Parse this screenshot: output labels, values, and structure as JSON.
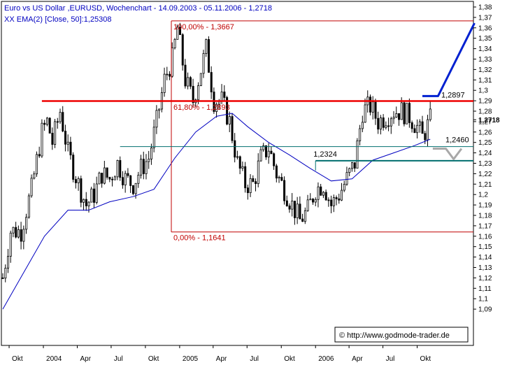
{
  "header": {
    "title": "Euro vs US Dollar ,EURUSD, Wochenchart - 14.09.2003 - 05.11.2006 - 1,2718",
    "ema_label": "XX EMA(2) [Close, 50]:1,25308"
  },
  "copyright": "© http://www.godmode-trader.de",
  "colors": {
    "background": "#ffffff",
    "price_bars": "#000000",
    "ema_line": "#0000c0",
    "fib_lines": "#c00000",
    "resistance": "#ee0000",
    "support_teal": "#006e6e",
    "projection_up": "#0020d0",
    "projection_down": "#a8a8a8",
    "title_text": "#0000c0",
    "fib_text": "#c00000"
  },
  "chart_data": {
    "type": "candlestick",
    "x_tick_labels": [
      "Okt",
      "2004",
      "Apr",
      "Jul",
      "Okt",
      "2005",
      "Apr",
      "Jul",
      "Okt",
      "2006",
      "Apr",
      "Jul",
      "Okt"
    ],
    "y_tick_labels": [
      "1,38",
      "1,37",
      "1,36",
      "1,35",
      "1,34",
      "1,33",
      "1,32",
      "1,31",
      "1,3",
      "1,29",
      "1,28",
      "1,27",
      "1,26",
      "1,25",
      "1,24",
      "1,23",
      "1,22",
      "1,21",
      "1,2",
      "1,19",
      "1,18",
      "1,17",
      "1,16",
      "1,15",
      "1,14",
      "1,13",
      "1,12",
      "1,11",
      "1,1",
      "1,09"
    ],
    "ylim": [
      1.08,
      1.385
    ],
    "x_range": [
      "2003-09-14",
      "2006-11-05"
    ],
    "last_close": 1.2718,
    "ema_value": 1.25308,
    "fib_levels": [
      {
        "label": "100,00% - 1,3667",
        "value": 1.3667
      },
      {
        "label": "61,80% - 1,2893",
        "value": 1.2893
      },
      {
        "label": "0,00% - 1,1641",
        "value": 1.1641
      }
    ],
    "horizontal_levels": [
      {
        "label": "1,2897",
        "value": 1.2897,
        "start": "2003-12-28"
      },
      {
        "label": "1,2460",
        "value": 1.246,
        "start": "2004-07-25"
      },
      {
        "label": "1,2324",
        "value": 1.2324,
        "start": "2006-01-01"
      }
    ],
    "projection_up": [
      {
        "date": "2006-10-15",
        "value": 1.2945
      },
      {
        "date": "2006-11-26",
        "value": 1.2945
      },
      {
        "date": "2007-03-04",
        "value": 1.3645
      }
    ],
    "projection_down": [
      {
        "date": "2006-11-12",
        "value": 1.244
      },
      {
        "date": "2006-12-17",
        "value": 1.244
      },
      {
        "date": "2007-01-07",
        "value": 1.234
      },
      {
        "date": "2007-01-28",
        "value": 1.244
      }
    ],
    "close_path": [
      [
        "2003-09-14",
        1.12
      ],
      [
        "2003-10-05",
        1.165
      ],
      [
        "2003-11-02",
        1.165
      ],
      [
        "2003-11-30",
        1.205
      ],
      [
        "2003-12-28",
        1.26
      ],
      [
        "2004-01-11",
        1.27
      ],
      [
        "2004-01-25",
        1.25
      ],
      [
        "2004-02-15",
        1.28
      ],
      [
        "2004-03-07",
        1.24
      ],
      [
        "2004-04-04",
        1.21
      ],
      [
        "2004-04-25",
        1.19
      ],
      [
        "2004-05-16",
        1.2
      ],
      [
        "2004-06-06",
        1.22
      ],
      [
        "2004-06-27",
        1.215
      ],
      [
        "2004-07-18",
        1.23
      ],
      [
        "2004-08-08",
        1.215
      ],
      [
        "2004-08-29",
        1.21
      ],
      [
        "2004-09-19",
        1.225
      ],
      [
        "2004-10-10",
        1.235
      ],
      [
        "2004-10-31",
        1.27
      ],
      [
        "2004-11-21",
        1.31
      ],
      [
        "2004-12-12",
        1.33
      ],
      [
        "2004-12-26",
        1.36
      ],
      [
        "2005-01-16",
        1.31
      ],
      [
        "2005-02-06",
        1.29
      ],
      [
        "2005-02-27",
        1.32
      ],
      [
        "2005-03-13",
        1.34
      ],
      [
        "2005-04-03",
        1.29
      ],
      [
        "2005-04-24",
        1.29
      ],
      [
        "2005-05-15",
        1.27
      ],
      [
        "2005-06-05",
        1.23
      ],
      [
        "2005-06-26",
        1.21
      ],
      [
        "2005-07-17",
        1.21
      ],
      [
        "2005-08-07",
        1.235
      ],
      [
        "2005-08-28",
        1.245
      ],
      [
        "2005-09-18",
        1.22
      ],
      [
        "2005-10-09",
        1.205
      ],
      [
        "2005-10-30",
        1.19
      ],
      [
        "2005-11-20",
        1.175
      ],
      [
        "2005-12-11",
        1.185
      ],
      [
        "2006-01-01",
        1.205
      ],
      [
        "2006-01-22",
        1.21
      ],
      [
        "2006-02-12",
        1.19
      ],
      [
        "2006-03-05",
        1.2
      ],
      [
        "2006-03-26",
        1.215
      ],
      [
        "2006-04-16",
        1.23
      ],
      [
        "2006-05-07",
        1.28
      ],
      [
        "2006-05-28",
        1.285
      ],
      [
        "2006-06-18",
        1.27
      ],
      [
        "2006-07-09",
        1.275
      ],
      [
        "2006-07-30",
        1.28
      ],
      [
        "2006-08-20",
        1.28
      ],
      [
        "2006-09-10",
        1.275
      ],
      [
        "2006-10-01",
        1.265
      ],
      [
        "2006-10-15",
        1.255
      ],
      [
        "2006-11-05",
        1.2718
      ]
    ],
    "ema_path": [
      [
        "2003-09-14",
        1.09
      ],
      [
        "2003-11-09",
        1.125
      ],
      [
        "2004-01-04",
        1.16
      ],
      [
        "2004-03-07",
        1.185
      ],
      [
        "2004-05-02",
        1.185
      ],
      [
        "2004-06-27",
        1.193
      ],
      [
        "2004-08-29",
        1.198
      ],
      [
        "2004-10-24",
        1.205
      ],
      [
        "2004-12-19",
        1.235
      ],
      [
        "2005-02-13",
        1.26
      ],
      [
        "2005-04-10",
        1.275
      ],
      [
        "2005-05-22",
        1.278
      ],
      [
        "2005-07-03",
        1.265
      ],
      [
        "2005-08-28",
        1.25
      ],
      [
        "2005-10-23",
        1.238
      ],
      [
        "2005-12-18",
        1.225
      ],
      [
        "2006-02-12",
        1.213
      ],
      [
        "2006-04-09",
        1.215
      ],
      [
        "2006-06-04",
        1.233
      ],
      [
        "2006-07-30",
        1.24
      ],
      [
        "2006-09-24",
        1.247
      ],
      [
        "2006-11-05",
        1.2531
      ]
    ]
  }
}
